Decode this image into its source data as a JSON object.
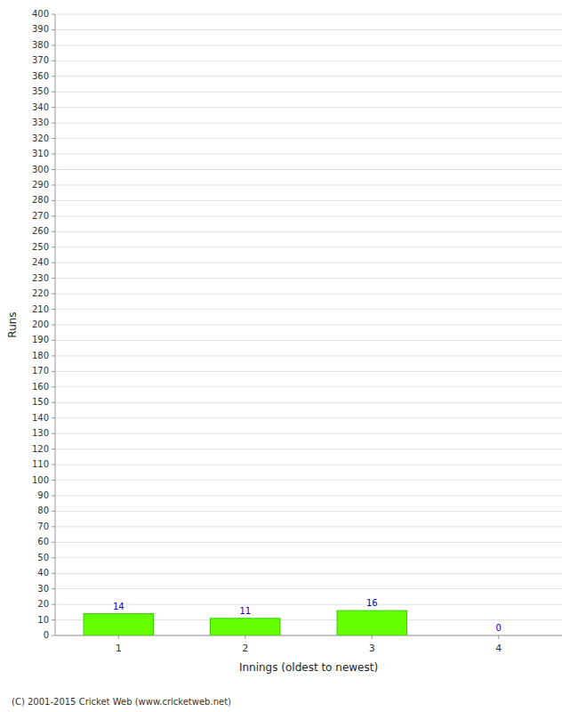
{
  "chart_data": {
    "type": "bar",
    "xlabel": "Innings (oldest to newest)",
    "ylabel": "Runs",
    "categories": [
      1,
      2,
      3,
      4
    ],
    "values": [
      14,
      11,
      16,
      0
    ],
    "color": "#66ff00",
    "data_labels": true,
    "grid": true,
    "xlim": [
      0.5,
      4.5
    ],
    "xticks": [
      1,
      2,
      3,
      4
    ],
    "ylim": [
      0,
      400
    ],
    "yticks": [
      0,
      10,
      20,
      30,
      40,
      50,
      60,
      70,
      80,
      90,
      100,
      110,
      120,
      130,
      140,
      150,
      160,
      170,
      180,
      190,
      200,
      210,
      220,
      230,
      240,
      250,
      260,
      270,
      280,
      290,
      300,
      310,
      320,
      330,
      340,
      350,
      360,
      370,
      380,
      390,
      400
    ],
    "annotations": [
      "(C) 2001-2015 Cricket Web (www.cricketweb.net)"
    ]
  }
}
